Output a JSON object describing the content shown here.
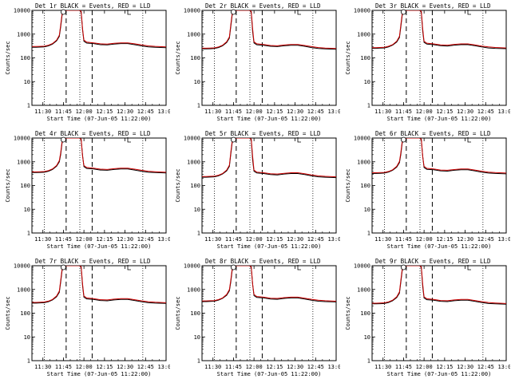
{
  "chart_data": {
    "type": "line",
    "y_scale": "log",
    "ylim": [
      1,
      10000
    ],
    "y_ticks": [
      "1",
      "10",
      "100",
      "1000",
      "10000"
    ],
    "x_ticks": [
      "11:30",
      "11:45",
      "12:00",
      "12:15",
      "12:30",
      "12:45",
      "13:00"
    ],
    "xlabel": "Start Time (07-Jun-05 11:22:00)",
    "ylabel": "Counts/sec",
    "legend": "BLACK = Events, RED = LLD",
    "series_colors": {
      "events": "#000000",
      "lld": "#cc0000"
    },
    "panels": [
      {
        "title": "Det 1r BLACK = Events, RED = LLD"
      },
      {
        "title": "Det 2r BLACK = Events, RED = LLD"
      },
      {
        "title": "Det 3r BLACK = Events, RED = LLD"
      },
      {
        "title": "Det 4r BLACK = Events, RED = LLD"
      },
      {
        "title": "Det 5r BLACK = Events, RED = LLD"
      },
      {
        "title": "Det 6r BLACK = Events, RED = LLD"
      },
      {
        "title": "Det 7r BLACK = Events, RED = LLD"
      },
      {
        "title": "Det 8r BLACK = Events, RED = LLD"
      },
      {
        "title": "Det 9r BLACK = Events, RED = LLD"
      }
    ],
    "series": [
      {
        "color_key": "events",
        "minutes": [
          0,
          3,
          6,
          9,
          12,
          15,
          18,
          20,
          21,
          22,
          23,
          24,
          35,
          36,
          37,
          38,
          40,
          45,
          50,
          55,
          60,
          65,
          70,
          75,
          80,
          85,
          90,
          98
        ],
        "values": [
          280,
          280,
          285,
          290,
          320,
          380,
          520,
          800,
          2000,
          6000,
          10000,
          12000,
          12000,
          8000,
          1500,
          500,
          420,
          400,
          360,
          350,
          380,
          400,
          400,
          360,
          320,
          290,
          280,
          270
        ]
      },
      {
        "color_key": "lld",
        "minutes": [
          0,
          3,
          6,
          9,
          12,
          15,
          18,
          20,
          21,
          22,
          23,
          24,
          35,
          36,
          37,
          38,
          40,
          45,
          50,
          55,
          60,
          65,
          70,
          75,
          80,
          85,
          90,
          98
        ],
        "values": [
          300,
          300,
          305,
          310,
          340,
          400,
          560,
          900,
          2400,
          7000,
          12000,
          14000,
          14000,
          9000,
          1700,
          560,
          460,
          430,
          390,
          380,
          410,
          430,
          430,
          390,
          350,
          320,
          305,
          290
        ]
      }
    ],
    "dotted_lines_minutes": [
      9,
      35,
      81
    ],
    "dashed_lines_minutes": [
      25,
      44
    ],
    "marker_open_circle_minute": 23,
    "marker_bracket_minute": 70
  }
}
